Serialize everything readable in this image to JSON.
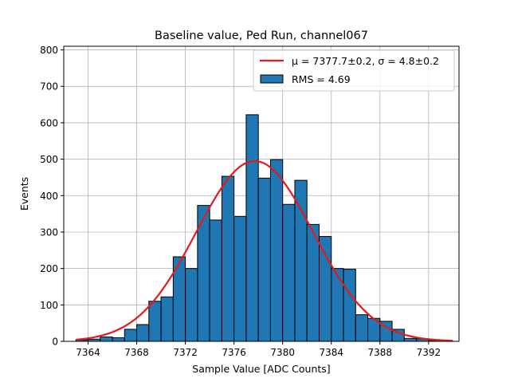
{
  "chart_data": {
    "type": "bar",
    "title": "Baseline value, Ped Run, channel067",
    "xlabel": "Sample Value [ADC Counts]",
    "ylabel": "Events",
    "xlim": [
      7362,
      7394.5
    ],
    "ylim": [
      0,
      810
    ],
    "x_ticks": [
      7364,
      7368,
      7372,
      7376,
      7380,
      7384,
      7388,
      7392
    ],
    "y_ticks": [
      0,
      100,
      200,
      300,
      400,
      500,
      600,
      700,
      800
    ],
    "grid": true,
    "legend_position": "top-right",
    "bin_width": 1,
    "bins": [
      {
        "x": 7363,
        "value": 4
      },
      {
        "x": 7364,
        "value": 6
      },
      {
        "x": 7365,
        "value": 12
      },
      {
        "x": 7366,
        "value": 10
      },
      {
        "x": 7367,
        "value": 33
      },
      {
        "x": 7368,
        "value": 46
      },
      {
        "x": 7369,
        "value": 110
      },
      {
        "x": 7370,
        "value": 122
      },
      {
        "x": 7371,
        "value": 232
      },
      {
        "x": 7372,
        "value": 200
      },
      {
        "x": 7373,
        "value": 373
      },
      {
        "x": 7374,
        "value": 333
      },
      {
        "x": 7375,
        "value": 453
      },
      {
        "x": 7376,
        "value": 343
      },
      {
        "x": 7377,
        "value": 622
      },
      {
        "x": 7378,
        "value": 448
      },
      {
        "x": 7379,
        "value": 499
      },
      {
        "x": 7380,
        "value": 376
      },
      {
        "x": 7381,
        "value": 442
      },
      {
        "x": 7382,
        "value": 321
      },
      {
        "x": 7383,
        "value": 288
      },
      {
        "x": 7384,
        "value": 200
      },
      {
        "x": 7385,
        "value": 198
      },
      {
        "x": 7386,
        "value": 73
      },
      {
        "x": 7387,
        "value": 63
      },
      {
        "x": 7388,
        "value": 55
      },
      {
        "x": 7389,
        "value": 33
      },
      {
        "x": 7390,
        "value": 8
      },
      {
        "x": 7391,
        "value": 7
      },
      {
        "x": 7392,
        "value": 2
      }
    ],
    "fit": {
      "type": "gaussian",
      "mu": 7377.7,
      "sigma": 4.8,
      "peak": 495,
      "x_range": [
        7363,
        7394
      ]
    },
    "legend": {
      "fit_label": "μ = 7377.7±0.2, σ = 4.8±0.2",
      "hist_label": "RMS = 4.69"
    },
    "colors": {
      "bar_fill": "#1f77b4",
      "bar_edge": "#000000",
      "fit_line": "#e41a1c",
      "grid": "#b0b0b0"
    }
  }
}
